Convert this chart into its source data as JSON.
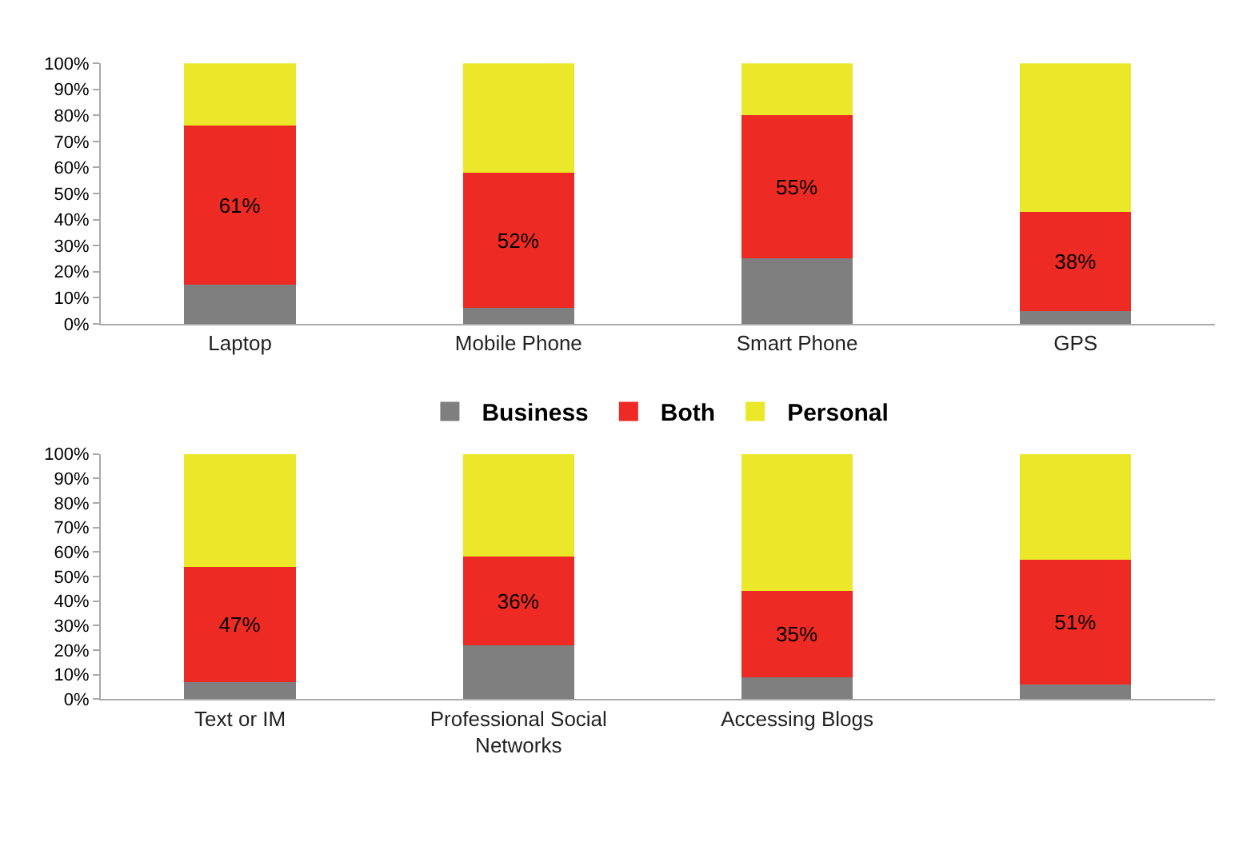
{
  "chart_data": [
    {
      "type": "bar",
      "stacked": true,
      "categories": [
        "Laptop",
        "Mobile Phone",
        "Smart Phone",
        "GPS"
      ],
      "ylim": [
        0,
        100
      ],
      "yticks": [
        {
          "value": 0,
          "label": "0%"
        },
        {
          "value": 10,
          "label": "10%"
        },
        {
          "value": 20,
          "label": "20%"
        },
        {
          "value": 30,
          "label": "30%"
        },
        {
          "value": 40,
          "label": "40%"
        },
        {
          "value": 50,
          "label": "50%"
        },
        {
          "value": 60,
          "label": "60%"
        },
        {
          "value": 70,
          "label": "70%"
        },
        {
          "value": 80,
          "label": "80%"
        },
        {
          "value": 90,
          "label": "90%"
        },
        {
          "value": 100,
          "label": "100%"
        }
      ],
      "legend": "bottom",
      "series": [
        {
          "name": "Business",
          "color": "#7f7f7f",
          "values": [
            15,
            6,
            25,
            5
          ]
        },
        {
          "name": "Both",
          "color": "#ee2a24",
          "values": [
            61,
            52,
            55,
            38
          ],
          "value_labels": [
            "61%",
            "52%",
            "55%",
            "38%"
          ]
        },
        {
          "name": "Personal",
          "color": "#ebe82a",
          "values": [
            24,
            42,
            20,
            57
          ]
        }
      ]
    },
    {
      "type": "bar",
      "stacked": true,
      "categories": [
        "Text or IM",
        "Professional Social Networks",
        "Accessing Blogs",
        null
      ],
      "ylim": [
        0,
        100
      ],
      "yticks": [
        {
          "value": 0,
          "label": "0%"
        },
        {
          "value": 10,
          "label": "10%"
        },
        {
          "value": 20,
          "label": "20%"
        },
        {
          "value": 30,
          "label": "30%"
        },
        {
          "value": 40,
          "label": "40%"
        },
        {
          "value": 50,
          "label": "50%"
        },
        {
          "value": 60,
          "label": "60%"
        },
        {
          "value": 70,
          "label": "70%"
        },
        {
          "value": 80,
          "label": "80%"
        },
        {
          "value": 90,
          "label": "90%"
        },
        {
          "value": 100,
          "label": "100%"
        }
      ],
      "series": [
        {
          "color": "#7f7f7f",
          "values": [
            7,
            22,
            9,
            6
          ]
        },
        {
          "color": "#ee2a24",
          "values": [
            47,
            36,
            35,
            51
          ],
          "value_labels": [
            "47%",
            "36%",
            "35%",
            "51%"
          ]
        },
        {
          "color": "#ebe82a",
          "values": [
            46,
            42,
            56,
            43
          ]
        }
      ]
    }
  ]
}
